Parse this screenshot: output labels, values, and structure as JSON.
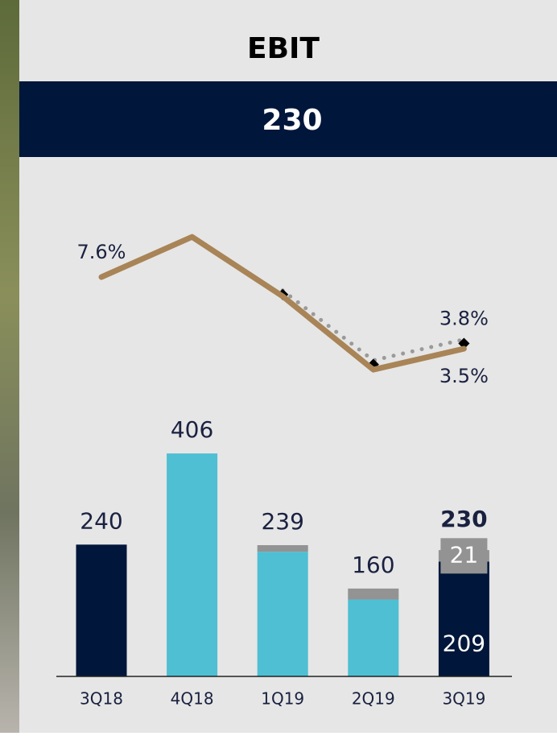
{
  "title": "EBIT",
  "headline": "230",
  "chart_data": {
    "type": "bar",
    "categories": [
      "3Q18",
      "4Q18",
      "1Q19",
      "2Q19",
      "3Q19"
    ],
    "totals": [
      240,
      406,
      239,
      160,
      230
    ],
    "series": [
      {
        "values": [
          240,
          406,
          227,
          140,
          209
        ],
        "colors": [
          "#00163a",
          "#4fbfd3",
          "#4fbfd3",
          "#4fbfd3",
          "#00163a"
        ],
        "value_labels": [
          null,
          null,
          null,
          null,
          "209"
        ]
      },
      {
        "values": [
          null,
          null,
          12,
          20,
          21
        ],
        "color": "#939393",
        "value_labels": [
          null,
          null,
          null,
          null,
          "21"
        ]
      }
    ],
    "lines": [
      {
        "values": [
          7.6,
          9.9,
          6.5,
          2.3,
          3.5
        ],
        "color": "#a88457",
        "value_labels": [
          "7.6%",
          null,
          null,
          null,
          "3.5%"
        ]
      },
      {
        "values": [
          null,
          null,
          6.6,
          2.6,
          3.8
        ],
        "color": "#9a9a9a",
        "style": "dotted",
        "marker": "diamond",
        "value_labels": [
          null,
          null,
          null,
          null,
          "3.8%"
        ]
      }
    ]
  }
}
